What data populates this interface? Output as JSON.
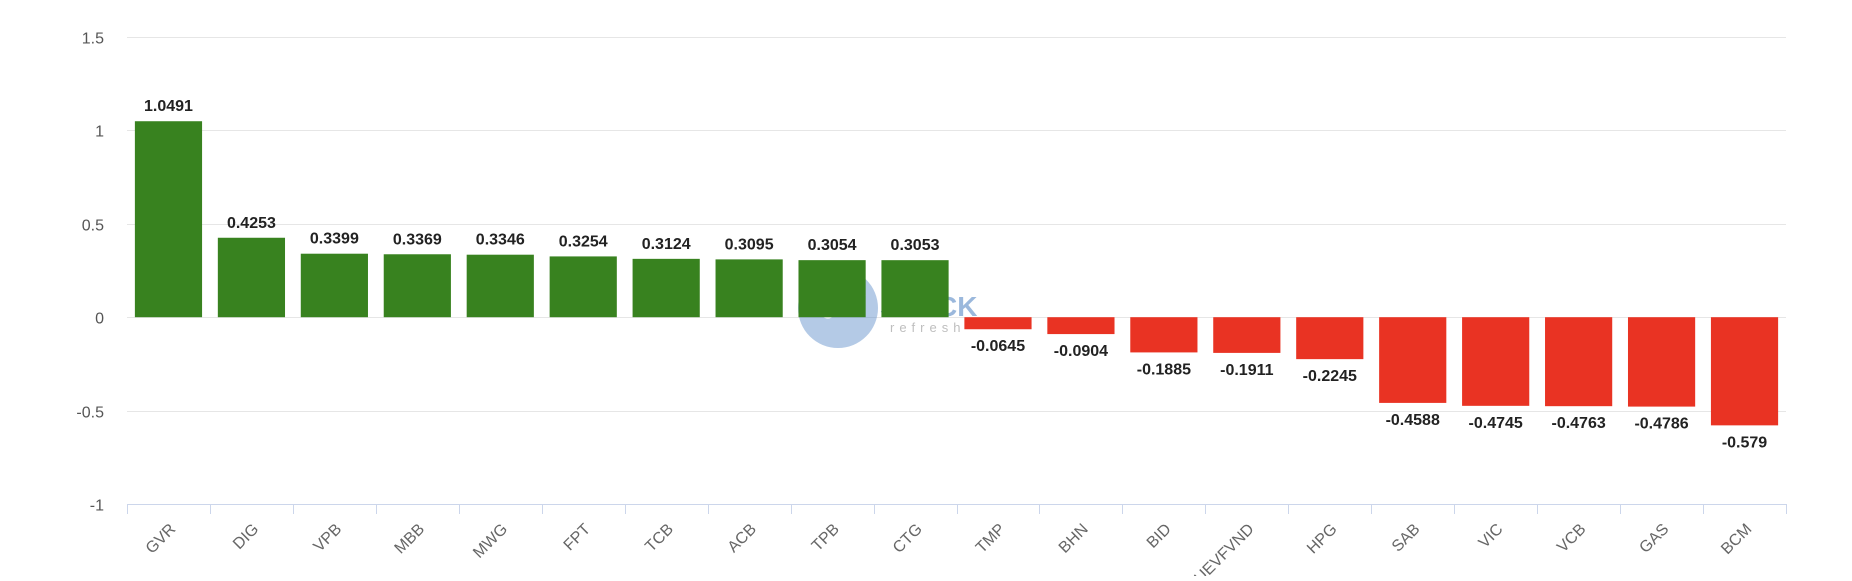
{
  "chart_data": {
    "type": "bar",
    "title": "",
    "xlabel": "",
    "ylabel": "",
    "categories": [
      "GVR",
      "DIG",
      "VPB",
      "MBB",
      "MWG",
      "FPT",
      "TCB",
      "ACB",
      "TPB",
      "CTG",
      "TMP",
      "BHN",
      "BID",
      "FUEVFVND",
      "HPG",
      "SAB",
      "VIC",
      "VCB",
      "GAS",
      "BCM"
    ],
    "values": [
      1.0491,
      0.4253,
      0.3399,
      0.3369,
      0.3346,
      0.3254,
      0.3124,
      0.3095,
      0.3054,
      0.3053,
      -0.0645,
      -0.0904,
      -0.1885,
      -0.1911,
      -0.2245,
      -0.4588,
      -0.4745,
      -0.4763,
      -0.4786,
      -0.579
    ],
    "value_labels": [
      "1.0491",
      "0.4253",
      "0.3399",
      "0.3369",
      "0.3346",
      "0.3254",
      "0.3124",
      "0.3095",
      "0.3054",
      "0.3053",
      "-0.0645",
      "-0.0904",
      "-0.1885",
      "-0.1911",
      "-0.2245",
      "-0.4588",
      "-0.4745",
      "-0.4763",
      "-0.4786",
      "-0.579"
    ],
    "ylim": [
      -1,
      1.5
    ],
    "yticks": [
      1.5,
      1,
      0.5,
      0,
      -0.5,
      -1
    ],
    "ytick_labels": [
      "1.5",
      "1",
      "0.5",
      "0",
      "-0.5",
      "-1"
    ],
    "grid": true,
    "colors": {
      "positive": "#38821f",
      "negative": "#e93323"
    }
  },
  "watermark": {
    "text": "STOCK",
    "subtext": "refresh",
    "color": "#4a7fc1"
  }
}
